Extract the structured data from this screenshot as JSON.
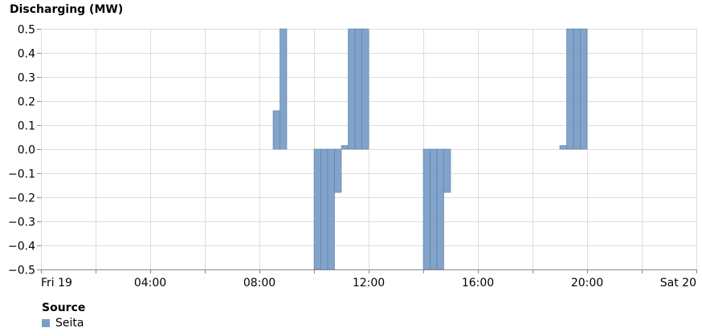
{
  "chart_data": {
    "type": "bar",
    "title": "Discharging (MW)",
    "ylabel": "",
    "xlabel": "",
    "ylim": [
      -0.5,
      0.5
    ],
    "y_ticks": [
      "0.5",
      "0.4",
      "0.3",
      "0.2",
      "0.1",
      "0.0",
      "−0.1",
      "−0.2",
      "−0.3",
      "−0.4",
      "−0.5"
    ],
    "x_ticks": [
      "Fri 19",
      "04:00",
      "08:00",
      "12:00",
      "16:00",
      "20:00",
      "Sat 20"
    ],
    "x_range_hours": [
      0,
      24
    ],
    "bar_width_hours": 0.25,
    "grid": true,
    "legend": {
      "title": "Source",
      "position": "bottom-left"
    },
    "series": [
      {
        "name": "Seita",
        "color": "#7b9ec7",
        "points": [
          {
            "t": 8.5,
            "v": 0.16
          },
          {
            "t": 8.75,
            "v": 0.5
          },
          {
            "t": 10.0,
            "v": -0.5
          },
          {
            "t": 10.25,
            "v": -0.5
          },
          {
            "t": 10.5,
            "v": -0.5
          },
          {
            "t": 10.75,
            "v": -0.18
          },
          {
            "t": 11.0,
            "v": 0.015
          },
          {
            "t": 11.25,
            "v": 0.5
          },
          {
            "t": 11.5,
            "v": 0.5
          },
          {
            "t": 11.75,
            "v": 0.5
          },
          {
            "t": 14.0,
            "v": -0.5
          },
          {
            "t": 14.25,
            "v": -0.5
          },
          {
            "t": 14.5,
            "v": -0.5
          },
          {
            "t": 14.75,
            "v": -0.18
          },
          {
            "t": 19.0,
            "v": 0.015
          },
          {
            "t": 19.25,
            "v": 0.5
          },
          {
            "t": 19.5,
            "v": 0.5
          },
          {
            "t": 19.75,
            "v": 0.5
          }
        ]
      }
    ]
  }
}
